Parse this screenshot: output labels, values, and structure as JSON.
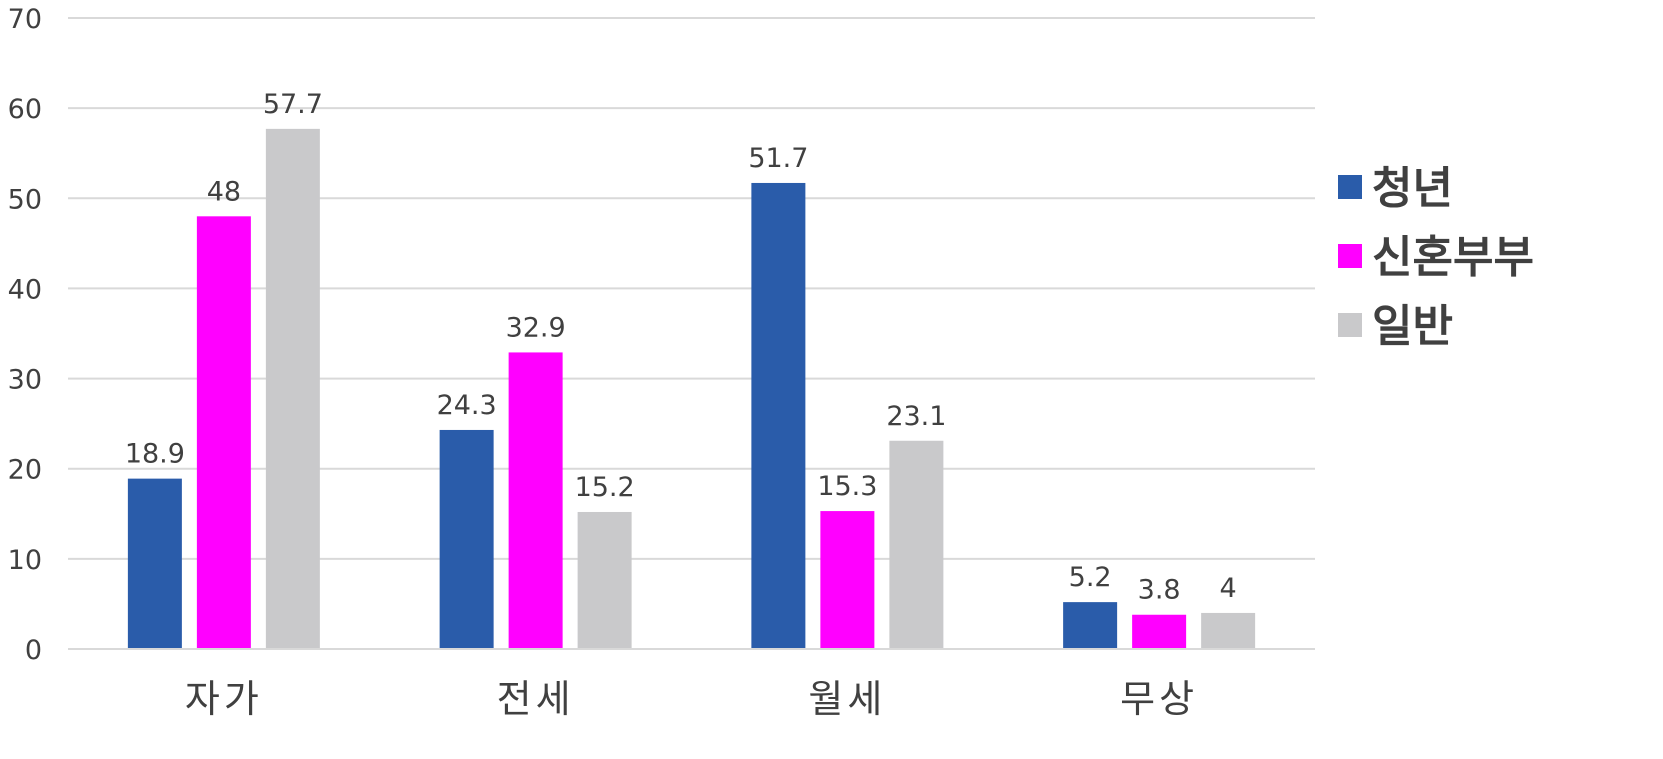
{
  "chart_data": {
    "type": "bar",
    "categories": [
      "자가",
      "전세",
      "월세",
      "무상"
    ],
    "series": [
      {
        "name": "청년",
        "color": "#2A5CAA",
        "values": [
          18.9,
          24.3,
          51.7,
          5.2
        ],
        "labels": [
          "18.9",
          "24.3",
          "51.7",
          "5.2"
        ]
      },
      {
        "name": "신혼부부",
        "color": "#FF00FF",
        "values": [
          48,
          32.9,
          15.3,
          3.8
        ],
        "labels": [
          "48",
          "32.9",
          "15.3",
          "3.8"
        ]
      },
      {
        "name": "일반",
        "color": "#C9C9CB",
        "values": [
          57.7,
          15.2,
          23.1,
          4
        ],
        "labels": [
          "57.7",
          "15.2",
          "23.1",
          "4"
        ]
      }
    ],
    "y_ticks": [
      "0",
      "10",
      "20",
      "30",
      "40",
      "50",
      "60",
      "70"
    ],
    "ylim": [
      0,
      70
    ],
    "grid": true,
    "legend_position": "right"
  }
}
